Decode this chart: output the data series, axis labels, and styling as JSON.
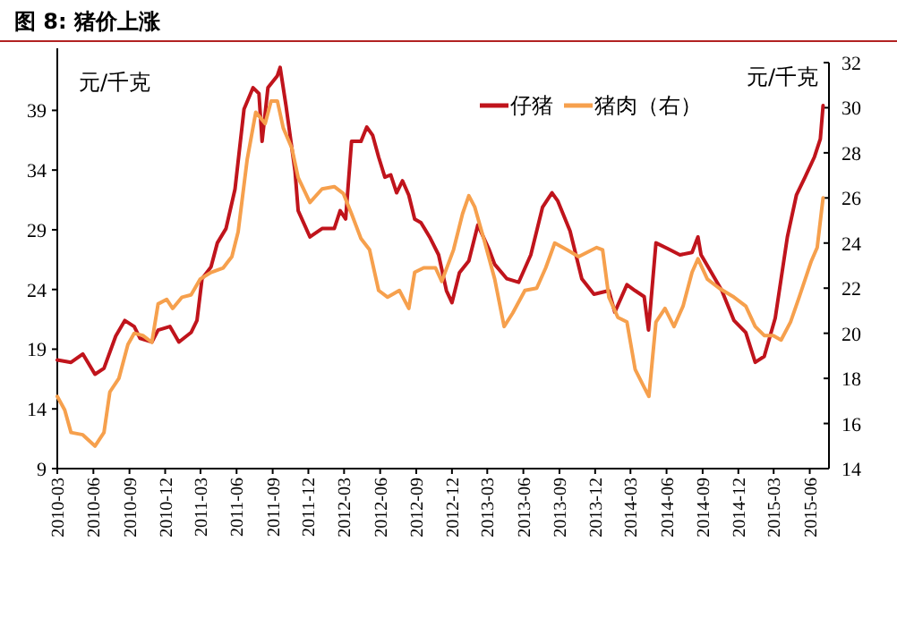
{
  "chart_data": {
    "type": "line",
    "title": "图 8:   猪价上涨",
    "ylabel": "元/千克",
    "y2label": "元/千克",
    "legend": "top right",
    "xlim": [
      "2010-03-01",
      "2015-07-20"
    ],
    "xticks": [
      "2010-03",
      "2010-06",
      "2010-09",
      "2010-12",
      "2011-03",
      "2011-06",
      "2011-09",
      "2011-12",
      "2012-03",
      "2012-06",
      "2012-09",
      "2012-12",
      "2013-03",
      "2013-06",
      "2013-09",
      "2013-12",
      "2014-03",
      "2014-06",
      "2014-09",
      "2014-12",
      "2015-03",
      "2015-06"
    ],
    "ylim": [
      9,
      43
    ],
    "yticks": [
      9,
      14,
      19,
      24,
      29,
      34,
      39
    ],
    "y2lim": [
      14,
      32
    ],
    "y2ticks": [
      14,
      16,
      18,
      20,
      22,
      24,
      26,
      28,
      30,
      32
    ],
    "series": [
      {
        "name": "仔猪",
        "color": "#c0141c",
        "x": [
          "2010-03-01",
          "2010-04-05",
          "2010-05-05",
          "2010-06-05",
          "2010-06-28",
          "2010-07-28",
          "2010-08-20",
          "2010-09-13",
          "2010-09-28",
          "2010-10-28",
          "2010-11-13",
          "2010-12-13",
          "2011-01-05",
          "2011-02-05",
          "2011-02-20",
          "2011-03-05",
          "2011-03-28",
          "2011-04-13",
          "2011-05-05",
          "2011-05-28",
          "2011-06-20",
          "2011-07-13",
          "2011-07-28",
          "2011-08-05",
          "2011-08-20",
          "2011-09-13",
          "2011-09-20",
          "2011-10-05",
          "2011-10-28",
          "2011-11-05",
          "2011-12-05",
          "2012-01-05",
          "2012-02-05",
          "2012-02-20",
          "2012-03-05",
          "2012-03-20",
          "2012-04-13",
          "2012-04-28",
          "2012-05-13",
          "2012-05-28",
          "2012-06-13",
          "2012-06-28",
          "2012-07-13",
          "2012-07-28",
          "2012-08-13",
          "2012-08-28",
          "2012-09-13",
          "2012-10-05",
          "2012-10-28",
          "2012-11-17",
          "2012-12-01",
          "2012-12-20",
          "2013-01-13",
          "2013-02-05",
          "2013-03-05",
          "2013-03-20",
          "2013-04-20",
          "2013-05-20",
          "2013-06-20",
          "2013-07-20",
          "2013-08-13",
          "2013-08-28",
          "2013-09-28",
          "2013-10-28",
          "2013-11-28",
          "2014-01-05",
          "2014-01-20",
          "2014-02-20",
          "2014-03-13",
          "2014-04-05",
          "2014-04-16",
          "2014-05-05",
          "2014-06-05",
          "2014-07-05",
          "2014-08-05",
          "2014-08-20",
          "2014-08-28",
          "2014-09-20",
          "2014-10-20",
          "2014-11-20",
          "2014-12-20",
          "2015-01-13",
          "2015-02-05",
          "2015-03-05",
          "2015-04-05",
          "2015-04-28",
          "2015-05-20",
          "2015-06-13",
          "2015-06-28",
          "2015-07-05"
        ],
        "values": [
          18.1,
          17.9,
          18.6,
          16.9,
          17.4,
          20.1,
          21.4,
          20.9,
          19.9,
          19.6,
          20.6,
          20.9,
          19.6,
          20.4,
          21.4,
          24.9,
          25.9,
          27.9,
          29.1,
          32.4,
          39.1,
          40.9,
          40.4,
          36.4,
          40.9,
          41.9,
          42.6,
          39.4,
          33.9,
          30.6,
          28.4,
          29.1,
          29.1,
          30.6,
          29.9,
          36.4,
          36.4,
          37.6,
          36.9,
          35.1,
          33.4,
          33.6,
          32.1,
          33.1,
          31.9,
          29.9,
          29.6,
          28.4,
          26.9,
          23.9,
          22.9,
          25.4,
          26.4,
          29.4,
          27.4,
          26.1,
          24.9,
          24.6,
          26.9,
          30.9,
          32.1,
          31.4,
          28.9,
          24.9,
          23.6,
          23.9,
          22.1,
          24.4,
          23.9,
          23.4,
          20.6,
          27.9,
          27.4,
          26.9,
          27.1,
          28.4,
          26.9,
          25.6,
          23.9,
          21.4,
          20.4,
          17.9,
          18.4,
          21.6,
          28.4,
          31.9,
          33.4,
          35.1,
          36.6,
          39.4
        ]
      },
      {
        "name": "猪肉（右）",
        "color": "#f6a04d",
        "axis": "y2",
        "x": [
          "2010-03-01",
          "2010-03-20",
          "2010-04-05",
          "2010-05-05",
          "2010-06-05",
          "2010-06-28",
          "2010-07-13",
          "2010-08-05",
          "2010-08-28",
          "2010-09-13",
          "2010-10-05",
          "2010-10-28",
          "2010-11-13",
          "2010-12-05",
          "2010-12-20",
          "2011-01-13",
          "2011-02-05",
          "2011-02-28",
          "2011-03-28",
          "2011-04-28",
          "2011-05-20",
          "2011-06-05",
          "2011-06-28",
          "2011-07-20",
          "2011-08-13",
          "2011-08-28",
          "2011-09-13",
          "2011-09-28",
          "2011-10-20",
          "2011-11-05",
          "2011-12-05",
          "2012-01-05",
          "2012-02-05",
          "2012-02-28",
          "2012-03-20",
          "2012-04-13",
          "2012-05-05",
          "2012-05-28",
          "2012-06-20",
          "2012-07-20",
          "2012-08-13",
          "2012-08-28",
          "2012-09-20",
          "2012-10-20",
          "2012-11-05",
          "2012-12-05",
          "2012-12-28",
          "2013-01-13",
          "2013-01-28",
          "2013-02-20",
          "2013-03-20",
          "2013-04-13",
          "2013-05-05",
          "2013-06-05",
          "2013-07-05",
          "2013-07-28",
          "2013-08-20",
          "2013-09-20",
          "2013-10-20",
          "2013-12-05",
          "2013-12-20",
          "2014-01-05",
          "2014-01-28",
          "2014-02-20",
          "2014-03-13",
          "2014-04-05",
          "2014-04-17",
          "2014-05-05",
          "2014-05-28",
          "2014-06-20",
          "2014-07-13",
          "2014-08-05",
          "2014-08-20",
          "2014-09-13",
          "2014-10-13",
          "2014-11-20",
          "2014-12-20",
          "2015-01-13",
          "2015-02-05",
          "2015-02-28",
          "2015-03-20",
          "2015-04-13",
          "2015-05-05",
          "2015-06-05",
          "2015-06-20",
          "2015-07-05"
        ],
        "values": [
          17.2,
          16.6,
          15.6,
          15.5,
          15.0,
          15.6,
          17.4,
          18.0,
          19.5,
          20.0,
          19.9,
          19.6,
          21.3,
          21.5,
          21.1,
          21.6,
          21.7,
          22.4,
          22.7,
          22.9,
          23.4,
          24.5,
          27.7,
          29.8,
          29.3,
          30.3,
          30.3,
          29.1,
          28.2,
          26.9,
          25.8,
          26.4,
          26.5,
          26.2,
          25.3,
          24.2,
          23.7,
          21.9,
          21.6,
          21.9,
          21.1,
          22.7,
          22.9,
          22.9,
          22.3,
          23.7,
          25.3,
          26.1,
          25.6,
          24.2,
          22.4,
          20.3,
          20.9,
          21.9,
          22.0,
          22.9,
          24.0,
          23.7,
          23.4,
          23.8,
          23.7,
          21.6,
          20.7,
          20.5,
          18.4,
          17.6,
          17.2,
          20.5,
          21.1,
          20.3,
          21.2,
          22.7,
          23.3,
          22.4,
          22.0,
          21.6,
          21.2,
          20.3,
          19.9,
          19.9,
          19.7,
          20.5,
          21.6,
          23.2,
          23.8,
          26.0
        ]
      }
    ]
  }
}
